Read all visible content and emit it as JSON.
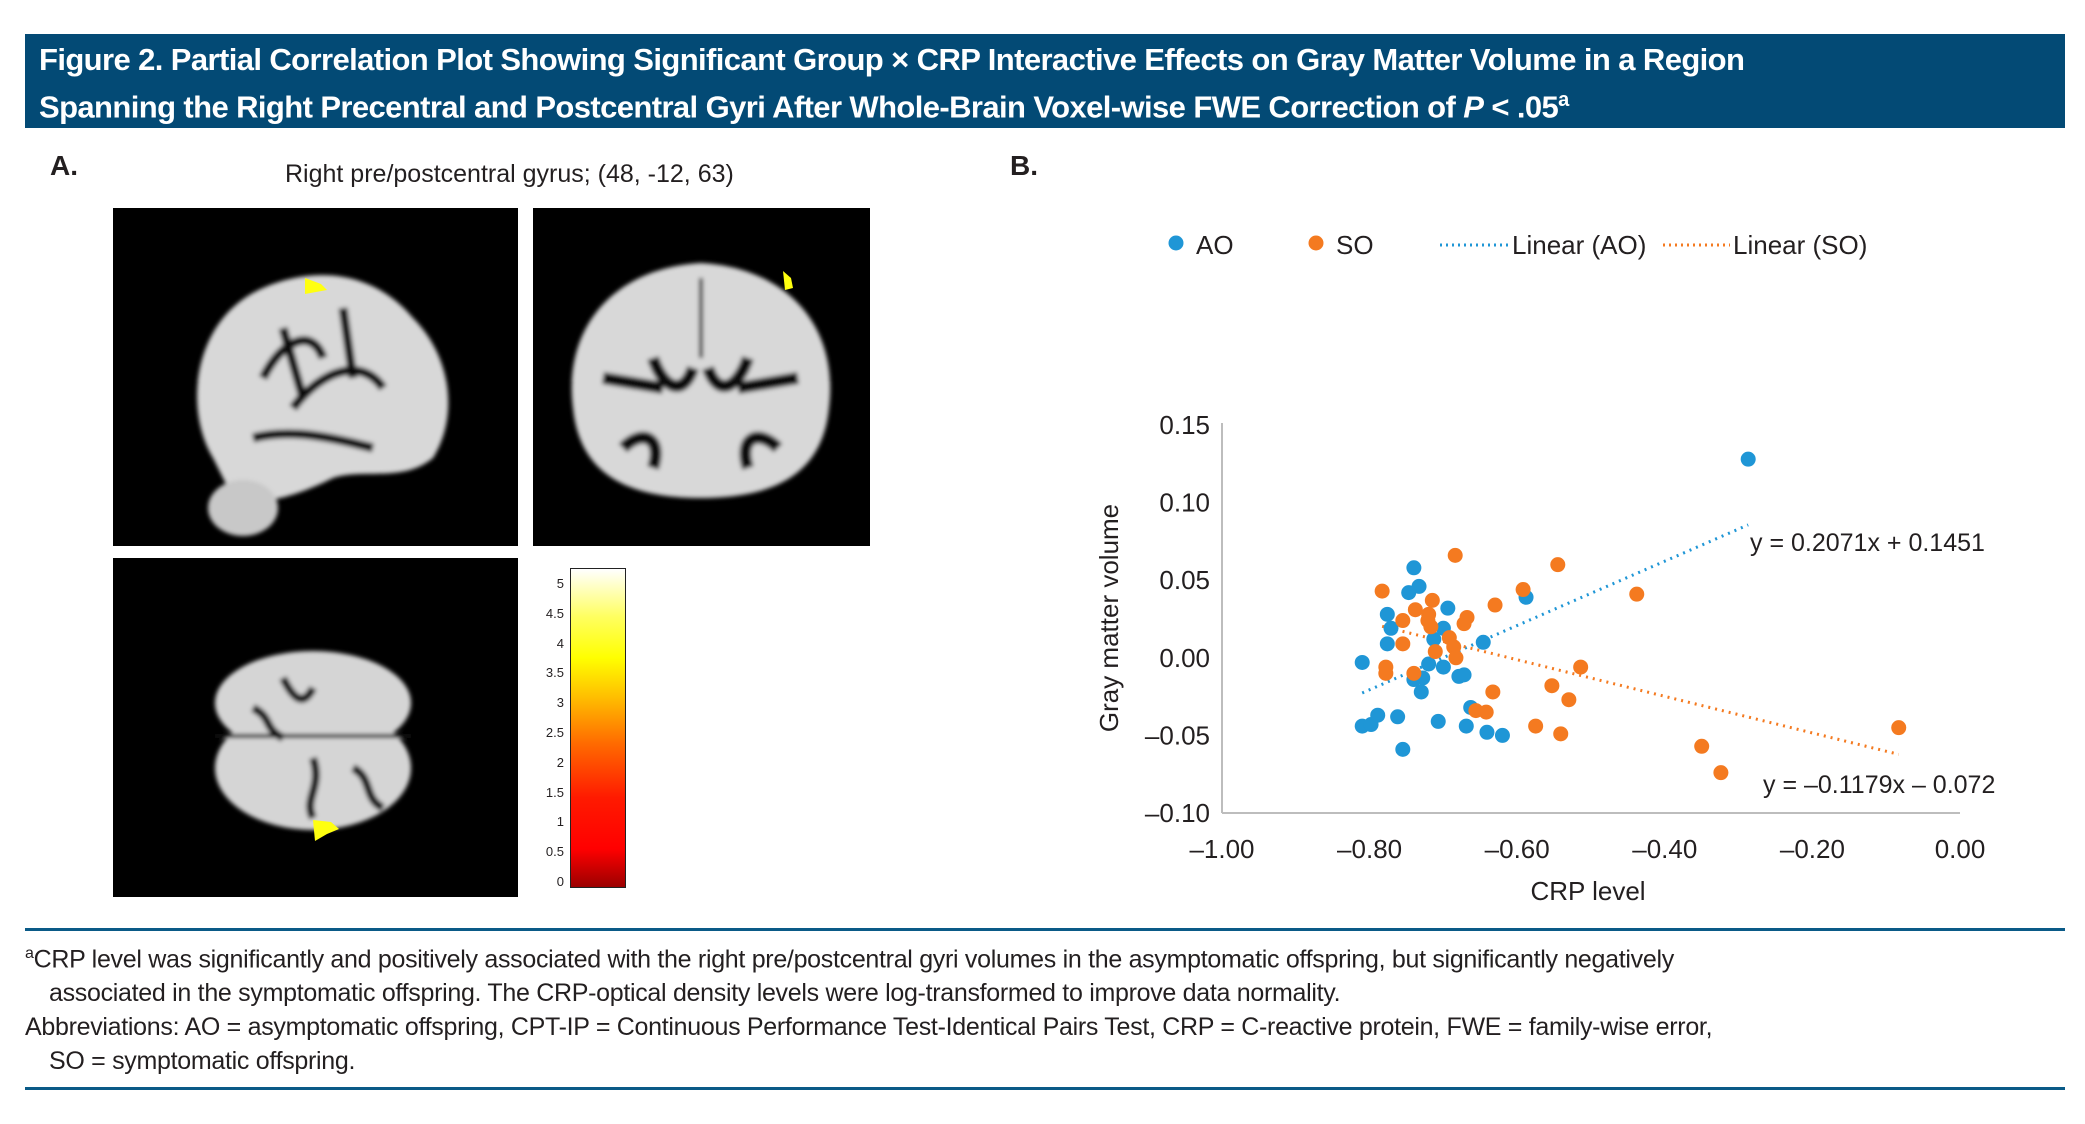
{
  "header": {
    "line1": "Figure 2. Partial Correlation Plot Showing Significant Group × CRP Interactive Effects on Gray Matter Volume in a Region",
    "line2_prefix": "Spanning the Right Precentral and Postcentral Gyri After Whole-Brain Voxel-wise FWE Correction of ",
    "line2_italic": "P",
    "line2_suffix": " < .05",
    "line2_sup": "a"
  },
  "panel_a": {
    "label": "A.",
    "subtitle": "Right pre/postcentral gyrus; (48, -12, 63)",
    "views": [
      "sagittal",
      "coronal",
      "axial"
    ],
    "colorbar": {
      "ticks": [
        "5",
        "4.5",
        "4",
        "3.5",
        "3",
        "2.5",
        "2",
        "1.5",
        "1",
        "0.5",
        "0"
      ],
      "min": 0,
      "max": 5.2
    }
  },
  "panel_b": {
    "label": "B."
  },
  "chart_data": {
    "type": "scatter",
    "title": "",
    "xlabel": "CRP level",
    "ylabel": "Gray matter volume",
    "xlim": [
      -1.0,
      0.0
    ],
    "ylim": [
      -0.1,
      0.15
    ],
    "xticks": [
      "–1.00",
      "–0.80",
      "–0.60",
      "–0.40",
      "–0.20",
      "0.00"
    ],
    "xtick_values": [
      -1.0,
      -0.8,
      -0.6,
      -0.4,
      -0.2,
      0.0
    ],
    "yticks": [
      "0.15",
      "0.10",
      "0.05",
      "0.00",
      "–0.05",
      "–0.10"
    ],
    "ytick_values": [
      0.15,
      0.1,
      0.05,
      0.0,
      -0.05,
      -0.1
    ],
    "grid": false,
    "legend_position": "top",
    "legend": [
      "AO",
      "SO",
      "Linear (AO)",
      "Linear (SO)"
    ],
    "colors": {
      "AO": "#1f96d6",
      "SO": "#f47a20"
    },
    "series": [
      {
        "name": "AO",
        "x": [
          -0.74,
          -0.733,
          -0.747,
          -0.776,
          -0.771,
          -0.776,
          -0.81,
          -0.694,
          -0.7,
          -0.713,
          -0.646,
          -0.72,
          -0.7,
          -0.679,
          -0.672,
          -0.74,
          -0.728,
          -0.73,
          -0.81,
          -0.798,
          -0.789,
          -0.762,
          -0.707,
          -0.669,
          -0.663,
          -0.641,
          -0.62,
          -0.755,
          -0.588,
          -0.287
        ],
        "y": [
          0.058,
          0.046,
          0.042,
          0.028,
          0.019,
          0.009,
          -0.003,
          0.032,
          0.019,
          0.012,
          0.01,
          -0.004,
          -0.006,
          -0.012,
          -0.011,
          -0.014,
          -0.013,
          -0.022,
          -0.044,
          -0.043,
          -0.037,
          -0.038,
          -0.041,
          -0.044,
          -0.032,
          -0.048,
          -0.05,
          -0.059,
          0.039,
          0.128
        ]
      },
      {
        "name": "SO",
        "x": [
          -0.684,
          -0.783,
          -0.715,
          -0.738,
          -0.755,
          -0.72,
          -0.717,
          -0.721,
          -0.668,
          -0.672,
          -0.63,
          -0.592,
          -0.692,
          -0.686,
          -0.683,
          -0.711,
          -0.755,
          -0.778,
          -0.778,
          -0.74,
          -0.633,
          -0.656,
          -0.642,
          -0.545,
          -0.553,
          -0.53,
          -0.575,
          -0.541,
          -0.438,
          -0.514,
          -0.083,
          -0.35,
          -0.324
        ],
        "y": [
          0.066,
          0.043,
          0.037,
          0.031,
          0.024,
          0.028,
          0.02,
          0.024,
          0.026,
          0.022,
          0.034,
          0.044,
          0.013,
          0.007,
          0.0,
          0.004,
          0.009,
          -0.006,
          -0.01,
          -0.01,
          -0.022,
          -0.034,
          -0.035,
          0.06,
          -0.018,
          -0.027,
          -0.044,
          -0.049,
          0.041,
          -0.006,
          -0.045,
          -0.057,
          -0.074
        ]
      }
    ],
    "trendlines": [
      {
        "name": "Linear (AO)",
        "slope": 0.2071,
        "intercept": 0.1451,
        "x_range": [
          -0.81,
          -0.287
        ],
        "label": "y = 0.2071x + 0.1451"
      },
      {
        "name": "Linear (SO)",
        "slope": -0.1179,
        "intercept": -0.072,
        "x_range": [
          -0.783,
          -0.083
        ],
        "label": "y = –0.1179x – 0.072"
      }
    ]
  },
  "footnote": {
    "sup": "a",
    "line1": "CRP level was significantly and positively associated with the right pre/postcentral gyri volumes in the asymptomatic offspring, but significantly negatively",
    "line2": "associated in the symptomatic offspring. The CRP-optical density levels were log-transformed to improve data normality.",
    "line3": "Abbreviations: AO = asymptomatic offspring, CPT-IP = Continuous Performance Test-Identical Pairs Test, CRP = C-reactive protein, FWE = family-wise error,",
    "line4": "SO = symptomatic offspring."
  }
}
